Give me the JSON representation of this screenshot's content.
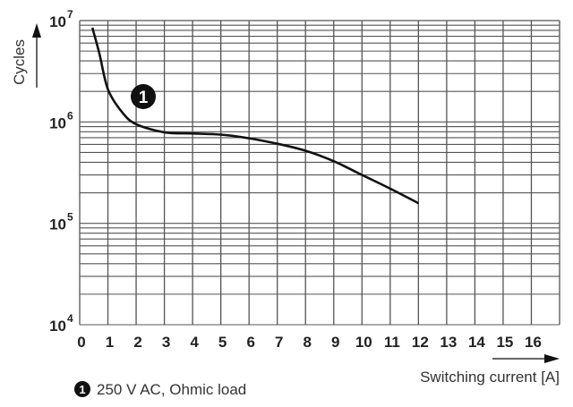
{
  "chart_data": {
    "type": "line",
    "title": "",
    "xlabel": "Switching current [A]",
    "ylabel": "Cycles",
    "xlim": [
      0,
      17
    ],
    "ylim": [
      10000,
      10000000
    ],
    "yscale": "log",
    "grid": true,
    "x_ticks": [
      "0",
      "1",
      "2",
      "3",
      "4",
      "5",
      "6",
      "7",
      "8",
      "9",
      "10",
      "11",
      "12",
      "13",
      "14",
      "15",
      "16"
    ],
    "y_ticks": [
      {
        "base": "10",
        "exp": "4"
      },
      {
        "base": "10",
        "exp": "5"
      },
      {
        "base": "10",
        "exp": "6"
      },
      {
        "base": "10",
        "exp": "7"
      }
    ],
    "series": [
      {
        "name": "250 V AC, Ohmic load",
        "marker_label": "1",
        "color": "#111111",
        "x": [
          0.45,
          0.7,
          1,
          1.5,
          2,
          3,
          4,
          5,
          6,
          7,
          8,
          9,
          10,
          11,
          12
        ],
        "y": [
          8500000,
          4700000,
          2100000,
          1250000,
          950000,
          790000,
          770000,
          750000,
          690000,
          610000,
          520000,
          410000,
          300000,
          220000,
          158000
        ]
      }
    ],
    "legend": {
      "placement": "bottom-left",
      "marker": "1",
      "text": "250 V AC, Ohmic load"
    }
  }
}
